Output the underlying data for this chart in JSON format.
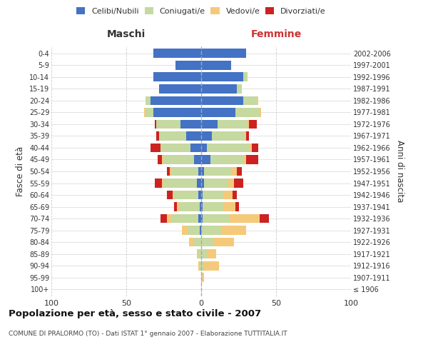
{
  "age_groups": [
    "100+",
    "95-99",
    "90-94",
    "85-89",
    "80-84",
    "75-79",
    "70-74",
    "65-69",
    "60-64",
    "55-59",
    "50-54",
    "45-49",
    "40-44",
    "35-39",
    "30-34",
    "25-29",
    "20-24",
    "15-19",
    "10-14",
    "5-9",
    "0-4"
  ],
  "birth_years": [
    "≤ 1906",
    "1907-1911",
    "1912-1916",
    "1917-1921",
    "1922-1926",
    "1927-1931",
    "1932-1936",
    "1937-1941",
    "1942-1946",
    "1947-1951",
    "1952-1956",
    "1957-1961",
    "1962-1966",
    "1967-1971",
    "1972-1976",
    "1977-1981",
    "1982-1986",
    "1987-1991",
    "1992-1996",
    "1997-2001",
    "2002-2006"
  ],
  "male": {
    "celibi": [
      0,
      0,
      0,
      0,
      0,
      1,
      2,
      1,
      2,
      3,
      2,
      5,
      7,
      10,
      14,
      32,
      34,
      28,
      32,
      17,
      32
    ],
    "coniugati": [
      0,
      0,
      1,
      2,
      5,
      8,
      18,
      14,
      16,
      22,
      18,
      20,
      20,
      18,
      16,
      5,
      3,
      0,
      0,
      0,
      0
    ],
    "vedovi": [
      0,
      0,
      1,
      1,
      3,
      4,
      3,
      1,
      1,
      1,
      1,
      1,
      0,
      0,
      0,
      1,
      0,
      0,
      0,
      0,
      0
    ],
    "divorziati": [
      0,
      0,
      0,
      0,
      0,
      0,
      4,
      2,
      4,
      5,
      2,
      3,
      7,
      2,
      1,
      0,
      0,
      0,
      0,
      0,
      0
    ]
  },
  "female": {
    "nubili": [
      0,
      0,
      0,
      0,
      0,
      0,
      1,
      1,
      1,
      2,
      2,
      6,
      4,
      7,
      11,
      23,
      28,
      24,
      28,
      20,
      30
    ],
    "coniugate": [
      0,
      0,
      2,
      4,
      8,
      14,
      18,
      14,
      14,
      16,
      18,
      22,
      28,
      22,
      20,
      16,
      9,
      3,
      3,
      0,
      0
    ],
    "vedove": [
      0,
      2,
      10,
      6,
      14,
      16,
      20,
      8,
      6,
      4,
      4,
      2,
      2,
      1,
      1,
      1,
      1,
      0,
      0,
      0,
      0
    ],
    "divorziate": [
      0,
      0,
      0,
      0,
      0,
      0,
      6,
      2,
      3,
      6,
      3,
      8,
      4,
      2,
      5,
      0,
      0,
      0,
      0,
      0,
      0
    ]
  },
  "color_celibi": "#4472c4",
  "color_coniugati": "#c5d9a0",
  "color_vedovi": "#f5c97a",
  "color_divorziati": "#cc2222",
  "xlim": 100,
  "title": "Popolazione per età, sesso e stato civile - 2007",
  "subtitle": "COMUNE DI PRALORMO (TO) - Dati ISTAT 1° gennaio 2007 - Elaborazione TUTTITALIA.IT",
  "ylabel_left": "Fasce di età",
  "ylabel_right": "Anni di nascita",
  "xlabel_left": "Maschi",
  "xlabel_right": "Femmine"
}
